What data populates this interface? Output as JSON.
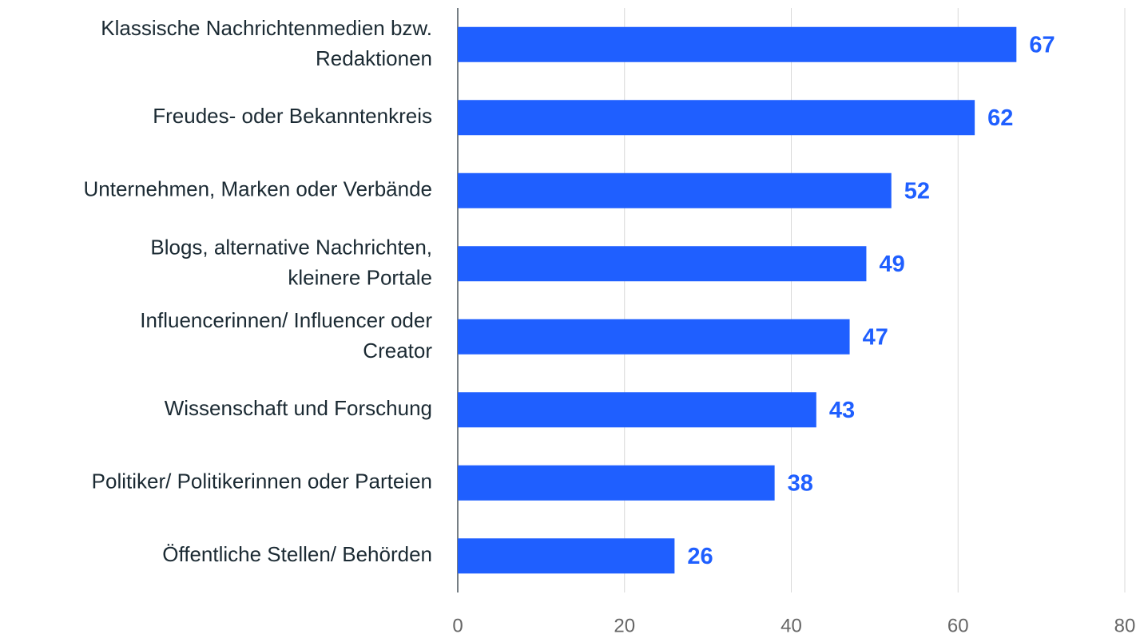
{
  "chart_data": {
    "type": "bar",
    "orientation": "horizontal",
    "categories": [
      "Klassische Nachrichtenmedien bzw.\nRedaktionen",
      "Freudes- oder Bekanntenkreis",
      "Unternehmen, Marken oder Verbände",
      "Blogs, alternative Nachrichten,\nkleinere Portale",
      "Influencerinnen/ Influencer oder\nCreator",
      "Wissenschaft und Forschung",
      "Politiker/ Politikerinnen oder Parteien",
      "Öffentliche Stellen/ Behörden"
    ],
    "values": [
      67,
      62,
      52,
      49,
      47,
      43,
      38,
      26
    ],
    "color": "#1f5fff",
    "xlim": [
      0,
      80
    ],
    "xticks": [
      0,
      20,
      40,
      60,
      80
    ],
    "grid": true
  }
}
